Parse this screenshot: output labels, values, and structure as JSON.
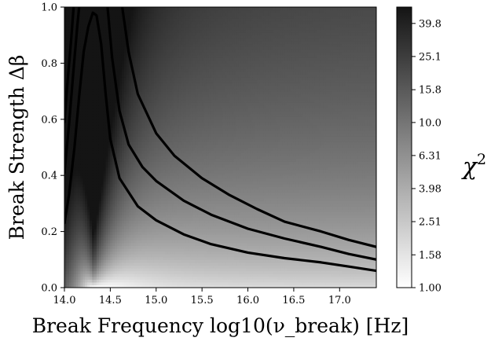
{
  "chart_data": {
    "type": "heatmap",
    "subtype": "filled-contour",
    "xlabel": "Break Frequency log10(ν_break) [Hz]",
    "ylabel": "Break Strength Δβ",
    "xlim": [
      14.0,
      17.4
    ],
    "ylim": [
      0.0,
      1.0
    ],
    "x_ticks": [
      14.0,
      14.5,
      15.0,
      15.5,
      16.0,
      16.5,
      17.0
    ],
    "x_tick_labels": [
      "14.0",
      "14.5",
      "15.0",
      "15.5",
      "16.0",
      "16.5",
      "17.0"
    ],
    "y_ticks": [
      0.0,
      0.2,
      0.4,
      0.6,
      0.8,
      1.0
    ],
    "y_tick_labels": [
      "0.0",
      "0.2",
      "0.4",
      "0.6",
      "0.8",
      "1.0"
    ],
    "colorbar": {
      "label": "χ",
      "label_superscript": "2",
      "scale": "log",
      "range": [
        1.0,
        50.0
      ],
      "colormap": "Greys",
      "ticks": [
        1.0,
        1.58,
        2.51,
        3.98,
        6.31,
        10.0,
        15.8,
        25.1,
        39.8
      ],
      "tick_labels": [
        "1.00",
        "1.58",
        "2.51",
        "3.98",
        "6.31",
        "10.0",
        "15.8",
        "25.1",
        "39.8"
      ]
    },
    "chi2_minimum": {
      "x": 14.32,
      "y": 0.0
    },
    "contour_lines": [
      {
        "level": "outer",
        "color": "#000000",
        "segments": [
          [
            [
              14.0,
              0.23
            ],
            [
              14.05,
              0.33
            ],
            [
              14.11,
              0.5
            ],
            [
              14.16,
              0.68
            ],
            [
              14.21,
              0.84
            ],
            [
              14.26,
              0.93
            ],
            [
              14.31,
              0.98
            ],
            [
              14.35,
              0.97
            ],
            [
              14.4,
              0.87
            ],
            [
              14.45,
              0.69
            ],
            [
              14.5,
              0.53
            ],
            [
              14.6,
              0.39
            ],
            [
              14.8,
              0.29
            ],
            [
              15.0,
              0.24
            ],
            [
              15.3,
              0.19
            ],
            [
              15.6,
              0.155
            ],
            [
              16.0,
              0.125
            ],
            [
              16.4,
              0.105
            ],
            [
              16.8,
              0.09
            ],
            [
              17.1,
              0.075
            ],
            [
              17.4,
              0.06
            ]
          ]
        ]
      },
      {
        "level": "middle",
        "color": "#000000",
        "segments": [
          [
            [
              14.0,
              0.41
            ],
            [
              14.05,
              0.58
            ],
            [
              14.1,
              0.78
            ],
            [
              14.14,
              0.93
            ],
            [
              14.16,
              1.0
            ]
          ],
          [
            [
              14.47,
              1.0
            ],
            [
              14.52,
              0.82
            ],
            [
              14.6,
              0.63
            ],
            [
              14.7,
              0.51
            ],
            [
              14.85,
              0.43
            ],
            [
              15.0,
              0.38
            ],
            [
              15.3,
              0.31
            ],
            [
              15.6,
              0.26
            ],
            [
              16.0,
              0.21
            ],
            [
              16.4,
              0.175
            ],
            [
              16.8,
              0.145
            ],
            [
              17.1,
              0.12
            ],
            [
              17.4,
              0.1
            ]
          ]
        ]
      },
      {
        "level": "inner",
        "color": "#000000",
        "segments": [
          [
            [
              14.0,
              0.59
            ],
            [
              14.03,
              0.72
            ],
            [
              14.07,
              0.87
            ],
            [
              14.1,
              1.0
            ]
          ],
          [
            [
              14.63,
              1.0
            ],
            [
              14.7,
              0.84
            ],
            [
              14.8,
              0.69
            ],
            [
              15.0,
              0.55
            ],
            [
              15.2,
              0.47
            ],
            [
              15.5,
              0.39
            ],
            [
              15.8,
              0.33
            ],
            [
              16.1,
              0.28
            ],
            [
              16.4,
              0.235
            ],
            [
              16.8,
              0.2
            ],
            [
              17.1,
              0.17
            ],
            [
              17.4,
              0.145
            ]
          ]
        ]
      }
    ]
  }
}
